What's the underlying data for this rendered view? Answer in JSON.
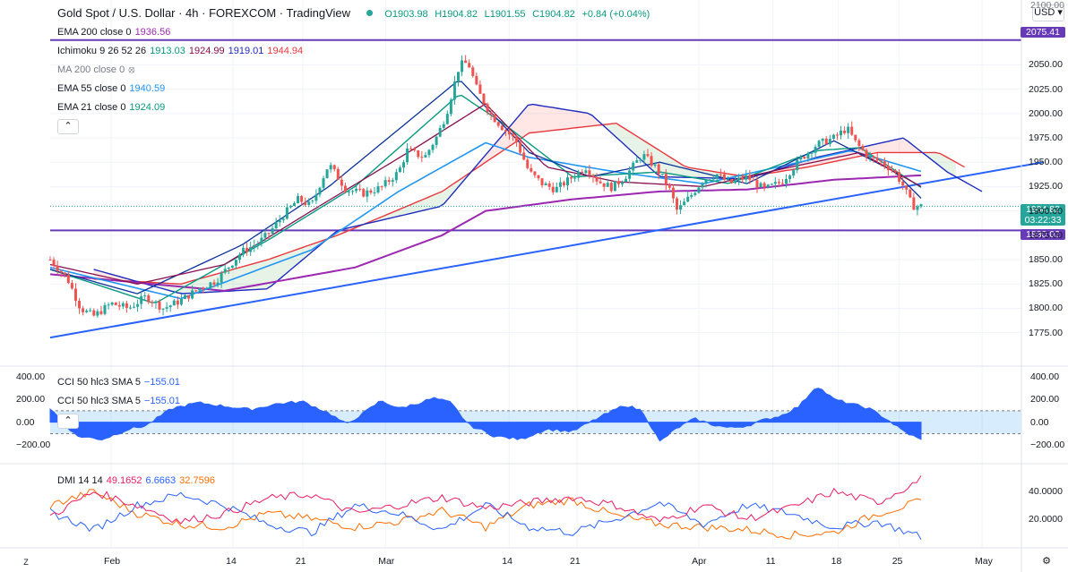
{
  "header": {
    "title": "Gold Spot / U.S. Dollar · 4h · FOREXCOM · TradingView",
    "open": "O1903.98",
    "high": "H1904.82",
    "low": "L1901.55",
    "close": "C1904.82",
    "change": "+0.84 (+0.04%)",
    "currency": "USD"
  },
  "legend": {
    "ema200": {
      "label": "EMA 200 close 0",
      "value": "1936.56"
    },
    "ichimoku": {
      "label": "Ichimoku 9 26 52 26",
      "v1": "1913.03",
      "v2": "1924.99",
      "v3": "1919.01",
      "v4": "1944.94"
    },
    "ma200": {
      "label": "MA 200 close 0"
    },
    "ema55": {
      "label": "EMA 55 close 0",
      "value": "1940.59"
    },
    "ema21": {
      "label": "EMA 21 close 0",
      "value": "1924.09"
    },
    "cci_a": {
      "label": "CCI 50 hlc3 SMA 5",
      "value": "−155.01"
    },
    "cci_b": {
      "label": "CCI 50 hlc3 SMA 5",
      "value": "−155.01"
    },
    "dmi": {
      "label": "DMI 14 14",
      "plus": "49.1652",
      "minus": "6.6663",
      "adx": "32.7596"
    }
  },
  "price_tags": {
    "level_high": "2075.41",
    "last": "1904.82",
    "countdown": "03:22:33",
    "level_low": "1880.02",
    "partial_top": "2100.00"
  },
  "colors": {
    "up": "#26a69a",
    "down": "#ef5350",
    "ema200": "#9c27b0",
    "ema55": "#2196f3",
    "ema21": "#089981",
    "tenkan": "#0c3299",
    "kijun": "#880e4f",
    "spanA": "#e8383d",
    "spanB": "#1e2bbd",
    "line": "#673ab7",
    "trend": "#2962ff",
    "cci": "#2962ff",
    "dmiPlus": "#e91e63",
    "dmiMinus": "#2962ff",
    "adx": "#ff6d00"
  },
  "chart_data": [
    {
      "type": "candlestick",
      "title": "Gold Spot / U.S. Dollar",
      "interval": "4h",
      "ylim": [
        1760,
        2100
      ],
      "y_ticks": [
        "2050.00",
        "2025.00",
        "2000.00",
        "1975.00",
        "1950.00",
        "1925.00",
        "1900.00",
        "1875.00",
        "1850.00",
        "1825.00",
        "1800.00",
        "1775.00"
      ],
      "x_ticks": [
        "Feb",
        "14",
        "21",
        "Mar",
        "14",
        "21",
        "Apr",
        "11",
        "18",
        "25",
        "May"
      ],
      "close_path": [
        [
          0,
          1850
        ],
        [
          0.02,
          1830
        ],
        [
          0.035,
          1800
        ],
        [
          0.05,
          1792
        ],
        [
          0.07,
          1805
        ],
        [
          0.09,
          1800
        ],
        [
          0.11,
          1812
        ],
        [
          0.13,
          1800
        ],
        [
          0.15,
          1808
        ],
        [
          0.17,
          1820
        ],
        [
          0.19,
          1828
        ],
        [
          0.21,
          1848
        ],
        [
          0.22,
          1858
        ],
        [
          0.24,
          1868
        ],
        [
          0.25,
          1876
        ],
        [
          0.27,
          1898
        ],
        [
          0.285,
          1912
        ],
        [
          0.3,
          1905
        ],
        [
          0.31,
          1928
        ],
        [
          0.32,
          1948
        ],
        [
          0.33,
          1935
        ],
        [
          0.34,
          1922
        ],
        [
          0.36,
          1918
        ],
        [
          0.38,
          1924
        ],
        [
          0.4,
          1940
        ],
        [
          0.41,
          1962
        ],
        [
          0.43,
          1955
        ],
        [
          0.445,
          1978
        ],
        [
          0.455,
          2000
        ],
        [
          0.47,
          2050
        ],
        [
          0.48,
          2052
        ],
        [
          0.49,
          2025
        ],
        [
          0.505,
          2000
        ],
        [
          0.52,
          1985
        ],
        [
          0.535,
          1972
        ],
        [
          0.55,
          1940
        ],
        [
          0.565,
          1928
        ],
        [
          0.58,
          1922
        ],
        [
          0.6,
          1935
        ],
        [
          0.615,
          1945
        ],
        [
          0.63,
          1930
        ],
        [
          0.645,
          1924
        ],
        [
          0.66,
          1935
        ],
        [
          0.68,
          1958
        ],
        [
          0.695,
          1945
        ],
        [
          0.71,
          1925
        ],
        [
          0.72,
          1900
        ],
        [
          0.735,
          1915
        ],
        [
          0.75,
          1932
        ],
        [
          0.765,
          1938
        ],
        [
          0.78,
          1928
        ],
        [
          0.8,
          1935
        ],
        [
          0.82,
          1922
        ],
        [
          0.84,
          1930
        ],
        [
          0.86,
          1952
        ],
        [
          0.88,
          1968
        ],
        [
          0.9,
          1975
        ],
        [
          0.915,
          1985
        ],
        [
          0.925,
          1970
        ],
        [
          0.94,
          1955
        ],
        [
          0.955,
          1950
        ],
        [
          0.97,
          1940
        ],
        [
          0.98,
          1925
        ],
        [
          0.99,
          1905
        ],
        [
          1,
          1904.82
        ]
      ],
      "ema200_path": [
        [
          0,
          1835
        ],
        [
          0.2,
          1818
        ],
        [
          0.35,
          1842
        ],
        [
          0.45,
          1875
        ],
        [
          0.5,
          1900
        ],
        [
          0.6,
          1912
        ],
        [
          0.7,
          1920
        ],
        [
          0.8,
          1922
        ],
        [
          0.9,
          1932
        ],
        [
          1,
          1936.56
        ]
      ],
      "ema55_path": [
        [
          0,
          1842
        ],
        [
          0.15,
          1810
        ],
        [
          0.3,
          1860
        ],
        [
          0.4,
          1920
        ],
        [
          0.5,
          1970
        ],
        [
          0.55,
          1955
        ],
        [
          0.65,
          1940
        ],
        [
          0.75,
          1928
        ],
        [
          0.85,
          1948
        ],
        [
          0.92,
          1962
        ],
        [
          1,
          1940.59
        ]
      ],
      "ema21_path": [
        [
          0,
          1840
        ],
        [
          0.12,
          1805
        ],
        [
          0.25,
          1870
        ],
        [
          0.35,
          1925
        ],
        [
          0.47,
          2020
        ],
        [
          0.52,
          1990
        ],
        [
          0.6,
          1935
        ],
        [
          0.7,
          1940
        ],
        [
          0.78,
          1928
        ],
        [
          0.88,
          1962
        ],
        [
          0.93,
          1965
        ],
        [
          1,
          1924.09
        ]
      ],
      "tenkan_path": [
        [
          0,
          1840
        ],
        [
          0.1,
          1815
        ],
        [
          0.22,
          1865
        ],
        [
          0.32,
          1925
        ],
        [
          0.47,
          2035
        ],
        [
          0.55,
          1960
        ],
        [
          0.62,
          1935
        ],
        [
          0.7,
          1950
        ],
        [
          0.8,
          1928
        ],
        [
          0.9,
          1972
        ],
        [
          0.97,
          1940
        ],
        [
          1,
          1913.03
        ]
      ],
      "kijun_path": [
        [
          0,
          1845
        ],
        [
          0.1,
          1825
        ],
        [
          0.2,
          1845
        ],
        [
          0.3,
          1900
        ],
        [
          0.42,
          1965
        ],
        [
          0.5,
          2010
        ],
        [
          0.57,
          1945
        ],
        [
          0.65,
          1930
        ],
        [
          0.75,
          1925
        ],
        [
          0.85,
          1945
        ],
        [
          0.93,
          1960
        ],
        [
          1,
          1924.99
        ]
      ],
      "spanA_path": [
        [
          0.05,
          1830
        ],
        [
          0.15,
          1825
        ],
        [
          0.25,
          1850
        ],
        [
          0.33,
          1875
        ],
        [
          0.45,
          1920
        ],
        [
          0.55,
          1980
        ],
        [
          0.65,
          1990
        ],
        [
          0.73,
          1945
        ],
        [
          0.8,
          1935
        ],
        [
          0.87,
          1945
        ],
        [
          0.95,
          1960
        ],
        [
          1.02,
          1960
        ],
        [
          1.05,
          1945
        ]
      ],
      "spanB_path": [
        [
          0.05,
          1840
        ],
        [
          0.15,
          1815
        ],
        [
          0.25,
          1820
        ],
        [
          0.33,
          1880
        ],
        [
          0.45,
          1905
        ],
        [
          0.55,
          2010
        ],
        [
          0.62,
          2000
        ],
        [
          0.7,
          1935
        ],
        [
          0.8,
          1933
        ],
        [
          0.88,
          1955
        ],
        [
          0.98,
          1975
        ],
        [
          1.03,
          1940
        ],
        [
          1.07,
          1920
        ]
      ],
      "hlines": [
        2075.41,
        1880.02
      ],
      "trendline": [
        [
          0,
          1770
        ],
        [
          1.14,
          1950
        ]
      ]
    },
    {
      "type": "area",
      "title": "CCI 50 hlc3 SMA 5",
      "ylim": [
        -300,
        420
      ],
      "y_ticks": [
        "400.00",
        "200.00",
        "0.00",
        "−200.00"
      ],
      "bands": [
        100,
        -100
      ],
      "values": [
        [
          0,
          120
        ],
        [
          0.03,
          -120
        ],
        [
          0.06,
          -150
        ],
        [
          0.09,
          -60
        ],
        [
          0.11,
          -30
        ],
        [
          0.14,
          120
        ],
        [
          0.17,
          170
        ],
        [
          0.2,
          140
        ],
        [
          0.23,
          110
        ],
        [
          0.26,
          160
        ],
        [
          0.29,
          180
        ],
        [
          0.32,
          80
        ],
        [
          0.34,
          -20
        ],
        [
          0.36,
          80
        ],
        [
          0.38,
          190
        ],
        [
          0.4,
          120
        ],
        [
          0.42,
          160
        ],
        [
          0.44,
          210
        ],
        [
          0.46,
          170
        ],
        [
          0.48,
          -20
        ],
        [
          0.51,
          -120
        ],
        [
          0.54,
          -150
        ],
        [
          0.57,
          -60
        ],
        [
          0.6,
          -80
        ],
        [
          0.63,
          40
        ],
        [
          0.66,
          150
        ],
        [
          0.68,
          100
        ],
        [
          0.7,
          -170
        ],
        [
          0.72,
          -50
        ],
        [
          0.74,
          30
        ],
        [
          0.76,
          -20
        ],
        [
          0.78,
          -50
        ],
        [
          0.8,
          -30
        ],
        [
          0.82,
          20
        ],
        [
          0.84,
          60
        ],
        [
          0.86,
          140
        ],
        [
          0.88,
          320
        ],
        [
          0.9,
          200
        ],
        [
          0.92,
          160
        ],
        [
          0.94,
          120
        ],
        [
          0.96,
          30
        ],
        [
          0.98,
          -80
        ],
        [
          1,
          -155.01
        ]
      ]
    },
    {
      "type": "line",
      "title": "DMI 14 14",
      "ylim": [
        0,
        58
      ],
      "y_ticks": [
        "40.0000",
        "20.0000"
      ],
      "plus": [
        [
          0,
          22
        ],
        [
          0.05,
          40
        ],
        [
          0.1,
          30
        ],
        [
          0.15,
          18
        ],
        [
          0.2,
          24
        ],
        [
          0.25,
          35
        ],
        [
          0.3,
          38
        ],
        [
          0.35,
          24
        ],
        [
          0.4,
          30
        ],
        [
          0.45,
          36
        ],
        [
          0.5,
          28
        ],
        [
          0.55,
          32
        ],
        [
          0.6,
          36
        ],
        [
          0.65,
          30
        ],
        [
          0.7,
          18
        ],
        [
          0.75,
          30
        ],
        [
          0.8,
          20
        ],
        [
          0.85,
          28
        ],
        [
          0.9,
          40
        ],
        [
          0.95,
          32
        ],
        [
          1,
          49.1652
        ]
      ],
      "minus": [
        [
          0,
          25
        ],
        [
          0.05,
          12
        ],
        [
          0.1,
          30
        ],
        [
          0.15,
          38
        ],
        [
          0.2,
          30
        ],
        [
          0.25,
          16
        ],
        [
          0.3,
          10
        ],
        [
          0.35,
          30
        ],
        [
          0.4,
          24
        ],
        [
          0.45,
          12
        ],
        [
          0.5,
          30
        ],
        [
          0.55,
          14
        ],
        [
          0.6,
          10
        ],
        [
          0.65,
          20
        ],
        [
          0.7,
          32
        ],
        [
          0.75,
          16
        ],
        [
          0.8,
          30
        ],
        [
          0.85,
          24
        ],
        [
          0.9,
          14
        ],
        [
          0.95,
          18
        ],
        [
          1,
          6.6663
        ]
      ],
      "adx": [
        [
          0,
          30
        ],
        [
          0.05,
          40
        ],
        [
          0.1,
          24
        ],
        [
          0.15,
          16
        ],
        [
          0.2,
          14
        ],
        [
          0.25,
          24
        ],
        [
          0.3,
          20
        ],
        [
          0.35,
          14
        ],
        [
          0.4,
          18
        ],
        [
          0.45,
          26
        ],
        [
          0.5,
          14
        ],
        [
          0.55,
          30
        ],
        [
          0.6,
          34
        ],
        [
          0.65,
          22
        ],
        [
          0.7,
          16
        ],
        [
          0.75,
          14
        ],
        [
          0.8,
          12
        ],
        [
          0.85,
          8
        ],
        [
          0.9,
          10
        ],
        [
          0.95,
          24
        ],
        [
          1,
          32.7596
        ]
      ]
    }
  ]
}
